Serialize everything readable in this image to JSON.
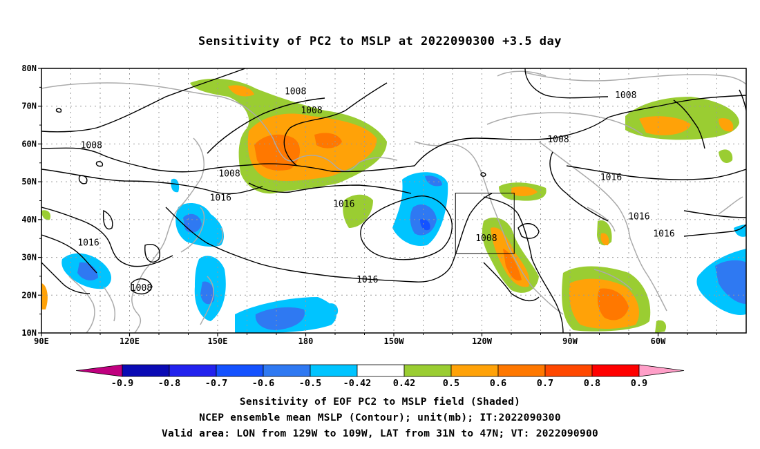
{
  "title": "Sensitivity of PC2 to MSLP at 2022090300 +3.5 day",
  "axes": {
    "lat_labels": [
      "80N",
      "70N",
      "60N",
      "50N",
      "40N",
      "30N",
      "20N",
      "10N"
    ],
    "lon_labels": [
      "90E",
      "120E",
      "150E",
      "180",
      "150W",
      "120W",
      "90W",
      "60W"
    ]
  },
  "contour_labels": [
    {
      "text": "1008",
      "lon": 176.5,
      "lat": 73.5
    },
    {
      "text": "1008",
      "lon": 182,
      "lat": 68.5
    },
    {
      "text": "1008",
      "lon": 107,
      "lat": 59.3
    },
    {
      "text": "1008",
      "lon": 154,
      "lat": 51.8
    },
    {
      "text": "1008",
      "lon": 266,
      "lat": 60.8
    },
    {
      "text": "1008",
      "lon": 289,
      "lat": 72.5
    },
    {
      "text": "1008",
      "lon": 241.5,
      "lat": 34.7
    },
    {
      "text": "1008",
      "lon": 124,
      "lat": 21.5
    },
    {
      "text": "1016",
      "lon": 151,
      "lat": 45.4
    },
    {
      "text": "1016",
      "lon": 193,
      "lat": 43.7
    },
    {
      "text": "1016",
      "lon": 106,
      "lat": 33.5
    },
    {
      "text": "1016",
      "lon": 201,
      "lat": 23.7
    },
    {
      "text": "1016",
      "lon": 284,
      "lat": 50.8
    },
    {
      "text": "1016",
      "lon": 293.5,
      "lat": 40.4
    },
    {
      "text": "1016",
      "lon": 302,
      "lat": 35.9
    }
  ],
  "valid_box": {
    "lon_min": 231,
    "lon_max": 251,
    "lat_min": 31,
    "lat_max": 47
  },
  "colorbar": {
    "labels": [
      "-0.9",
      "-0.8",
      "-0.7",
      "-0.6",
      "-0.5",
      "-0.42",
      "0.42",
      "0.5",
      "0.6",
      "0.7",
      "0.8",
      "0.9"
    ],
    "colors": [
      "#c0007f",
      "#0a0ab4",
      "#2222ee",
      "#1452ff",
      "#2f79f2",
      "#00c4ff",
      "#ffffff",
      "#9acd32",
      "#ffa208",
      "#ff7800",
      "#ff4800",
      "#ff0000",
      "#ff9fc8"
    ]
  },
  "captions": {
    "line1": "Sensitivity of EOF PC2 to MSLP field (Shaded)",
    "line2": "NCEP ensemble mean MSLP (Contour); unit(mb); IT:2022090300",
    "line3": "Valid area: LON from 129W to 109W, LAT from 31N to 47N; VT: 2022090900"
  }
}
